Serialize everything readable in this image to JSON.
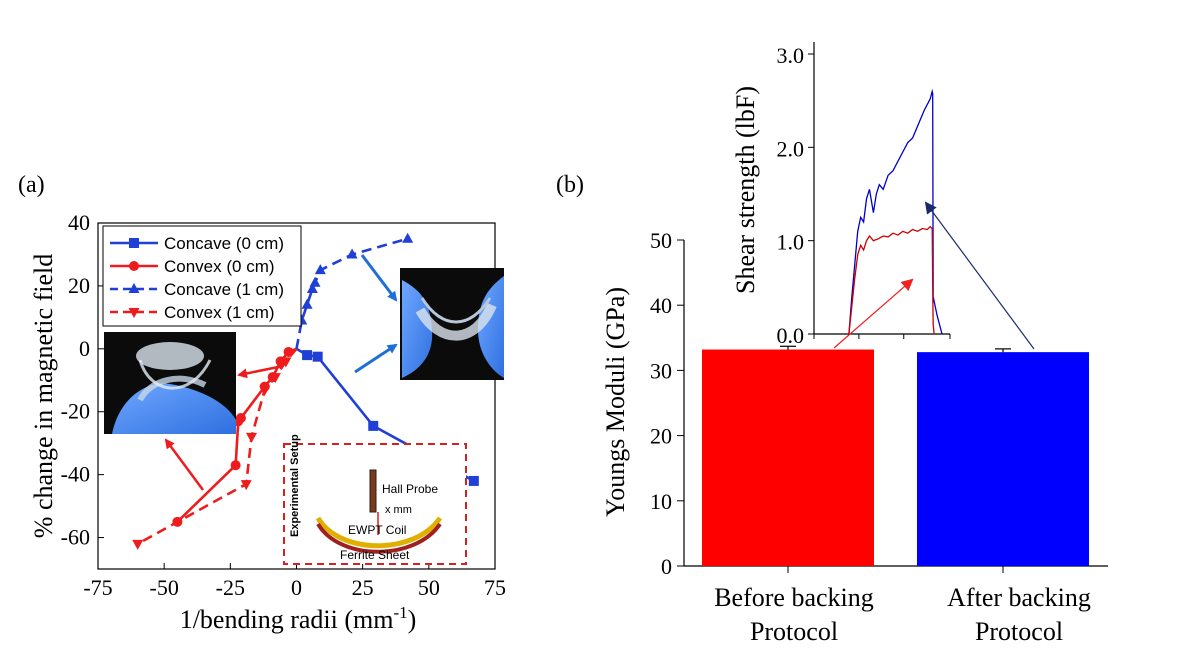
{
  "chart_data": [
    {
      "type": "line",
      "panel_label": "(a)",
      "xlabel": "1/bending radii (mm",
      "xlabel_sup": "-1",
      "xlabel_end": ")",
      "ylabel": "% change in magnetic field",
      "xlim": [
        -75,
        75
      ],
      "ylim": [
        -70,
        40
      ],
      "xticks": [
        -75,
        -50,
        -25,
        0,
        25,
        50,
        75
      ],
      "yticks": [
        40,
        20,
        0,
        -20,
        -40,
        -60
      ],
      "legend_position": "top-left",
      "series": [
        {
          "name": "Concave (0 cm)",
          "color": "#1f3fd6",
          "dash": "solid",
          "marker": "square",
          "x": [
            0,
            4,
            8,
            29,
            67
          ],
          "y": [
            0,
            -2,
            -2.5,
            -24.5,
            -42
          ]
        },
        {
          "name": "Convex (0 cm)",
          "color": "#ee1c1c",
          "dash": "solid",
          "marker": "circle",
          "x": [
            0,
            -3,
            -6,
            -9,
            -12,
            -21,
            -22,
            -23,
            -45
          ],
          "y": [
            0,
            -1,
            -4,
            -9,
            -12,
            -22,
            -23,
            -37,
            -55
          ]
        },
        {
          "name": "Concave (1 cm)",
          "color": "#1f3fd6",
          "dash": "dashed",
          "marker": "triangle-up",
          "x": [
            0,
            2,
            4,
            6,
            7,
            9,
            21,
            42
          ],
          "y": [
            0,
            9,
            14,
            19,
            21,
            25,
            30,
            35
          ]
        },
        {
          "name": "Convex (1 cm)",
          "color": "#ee1c1c",
          "dash": "dashed",
          "marker": "triangle-down",
          "x": [
            0,
            -4,
            -8,
            -12,
            -17,
            -19,
            -60
          ],
          "y": [
            0,
            -4,
            -9,
            -13,
            -28,
            -43,
            -62
          ]
        }
      ],
      "inset": {
        "title": "Experimental Setup",
        "labels": [
          "Hall Probe",
          "x mm",
          "EWPT Coil",
          "Ferrite Sheet"
        ]
      }
    },
    {
      "type": "bar",
      "panel_label": "(b)",
      "ylabel": "Youngs Moduli (GPa)",
      "ylim": [
        0,
        50
      ],
      "yticks": [
        0,
        10,
        20,
        30,
        40,
        50
      ],
      "categories": [
        "Before backing Protocol",
        "After backing Protocol"
      ],
      "category_lines": [
        [
          "Before backing",
          "Protocol"
        ],
        [
          "After backing",
          "Protocol"
        ]
      ],
      "values": [
        33.2,
        32.8
      ],
      "errors": [
        0.5,
        0.5
      ],
      "colors": [
        "#ff0000",
        "#0000ff"
      ],
      "inset": {
        "type": "line",
        "ylabel": "Shear strength (lbF)",
        "ylim": [
          0,
          3.0
        ],
        "yticks": [
          "0.0",
          "1.0",
          "2.0",
          "3.0"
        ],
        "series": [
          {
            "color": "#0000cc",
            "x": [
              0.05,
              0.08,
              0.11,
              0.14,
              0.17,
              0.2,
              0.23,
              0.26,
              0.3,
              0.33,
              0.36,
              0.4,
              0.45,
              0.5,
              0.55,
              0.6,
              0.65,
              0.7,
              0.74,
              0.78,
              0.82,
              0.86,
              0.88,
              0.9,
              0.905,
              0.91,
              0.92,
              0.95,
              1.0
            ],
            "y": [
              0,
              0.4,
              0.75,
              1.1,
              1.25,
              1.2,
              1.45,
              1.55,
              1.3,
              1.5,
              1.6,
              1.55,
              1.7,
              1.75,
              1.85,
              1.95,
              2.05,
              2.1,
              2.2,
              2.3,
              2.4,
              2.48,
              2.52,
              2.6,
              2.58,
              0.4,
              0.35,
              0.2,
              0
            ]
          },
          {
            "color": "#cc0000",
            "x": [
              0.05,
              0.08,
              0.11,
              0.14,
              0.17,
              0.2,
              0.23,
              0.26,
              0.3,
              0.35,
              0.4,
              0.45,
              0.5,
              0.55,
              0.6,
              0.65,
              0.7,
              0.75,
              0.8,
              0.85,
              0.88,
              0.9,
              0.905,
              0.91,
              0.92
            ],
            "y": [
              0,
              0.3,
              0.6,
              0.85,
              0.95,
              0.9,
              1.0,
              1.05,
              1.0,
              1.02,
              1.05,
              1.04,
              1.08,
              1.06,
              1.1,
              1.08,
              1.12,
              1.1,
              1.13,
              1.12,
              1.15,
              1.13,
              0.5,
              0.1,
              0
            ]
          }
        ]
      }
    }
  ]
}
